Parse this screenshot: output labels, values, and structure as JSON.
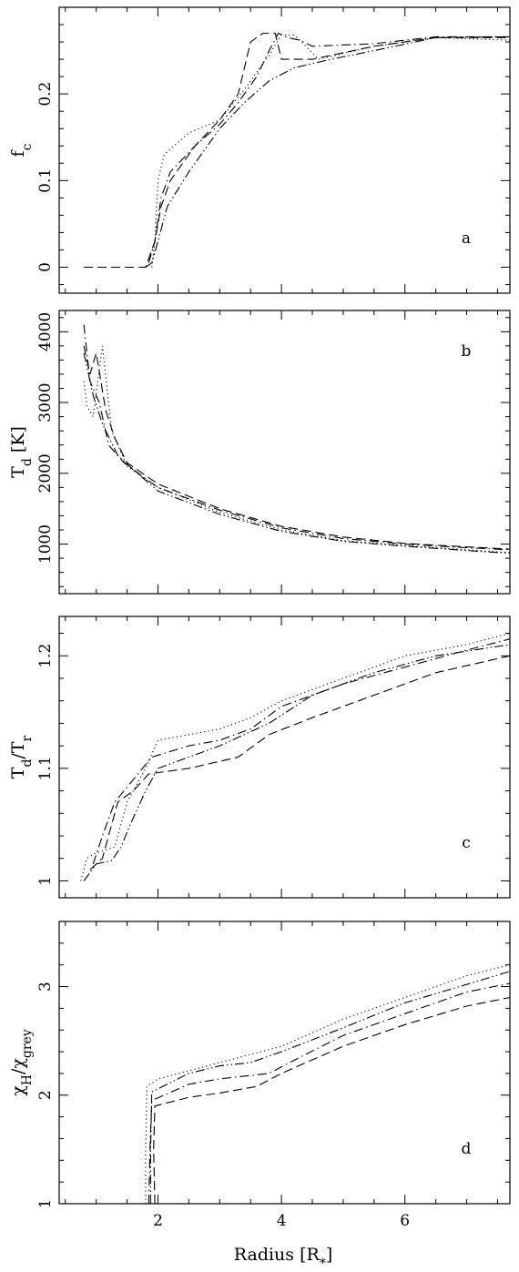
{
  "xlabel": "Radius [R",
  "xlabel_sub": "*",
  "xlabel_close": "]",
  "chart_data": [
    {
      "type": "line",
      "panel": "a",
      "ylabel_main": "f",
      "ylabel_sub": "c",
      "xlim": [
        0.4,
        7.7
      ],
      "ylim": [
        -0.03,
        0.3
      ],
      "xticks": [
        2,
        4,
        6
      ],
      "yticks": [
        0,
        0.1,
        0.2
      ],
      "ytick_labels": [
        "0",
        "0.1",
        "0.2"
      ],
      "series": [
        {
          "style": "dotted",
          "points": [
            [
              1.9,
              0
            ],
            [
              1.95,
              0.03
            ],
            [
              2.0,
              0.1
            ],
            [
              2.1,
              0.13
            ],
            [
              2.5,
              0.155
            ],
            [
              3.0,
              0.17
            ],
            [
              3.4,
              0.205
            ],
            [
              3.8,
              0.245
            ],
            [
              4.0,
              0.268
            ],
            [
              4.2,
              0.268
            ],
            [
              4.3,
              0.262
            ],
            [
              4.6,
              0.24
            ],
            [
              5.5,
              0.255
            ],
            [
              6.5,
              0.265
            ],
            [
              7.7,
              0.262
            ]
          ]
        },
        {
          "style": "dashed",
          "points": [
            [
              0.8,
              0
            ],
            [
              1.8,
              0
            ],
            [
              1.95,
              0.03
            ],
            [
              2.05,
              0.07
            ],
            [
              2.2,
              0.1
            ],
            [
              2.6,
              0.14
            ],
            [
              3.0,
              0.17
            ],
            [
              3.3,
              0.2
            ],
            [
              3.5,
              0.26
            ],
            [
              3.7,
              0.27
            ],
            [
              3.9,
              0.27
            ],
            [
              4.0,
              0.24
            ],
            [
              4.5,
              0.24
            ],
            [
              5.5,
              0.255
            ],
            [
              6.5,
              0.265
            ],
            [
              7.7,
              0.265
            ]
          ]
        },
        {
          "style": "dashdot",
          "points": [
            [
              1.85,
              0.005
            ],
            [
              1.95,
              0.03
            ],
            [
              2.05,
              0.08
            ],
            [
              2.2,
              0.11
            ],
            [
              2.6,
              0.14
            ],
            [
              3.0,
              0.165
            ],
            [
              3.3,
              0.19
            ],
            [
              3.6,
              0.22
            ],
            [
              3.8,
              0.25
            ],
            [
              3.95,
              0.27
            ],
            [
              4.1,
              0.265
            ],
            [
              4.3,
              0.262
            ],
            [
              4.5,
              0.255
            ],
            [
              5.5,
              0.258
            ],
            [
              6.5,
              0.266
            ],
            [
              7.7,
              0.266
            ]
          ]
        },
        {
          "style": "dashdotdot",
          "points": [
            [
              1.8,
              0
            ],
            [
              1.9,
              0.005
            ],
            [
              2.0,
              0.03
            ],
            [
              2.15,
              0.07
            ],
            [
              2.5,
              0.11
            ],
            [
              3.0,
              0.16
            ],
            [
              3.4,
              0.19
            ],
            [
              3.8,
              0.215
            ],
            [
              4.2,
              0.23
            ],
            [
              4.8,
              0.24
            ],
            [
              5.5,
              0.25
            ],
            [
              6.5,
              0.265
            ],
            [
              7.7,
              0.266
            ]
          ]
        }
      ]
    },
    {
      "type": "line",
      "panel": "b",
      "ylabel_main": "T",
      "ylabel_sub": "d",
      "ylabel_rest": " [K]",
      "xlim": [
        0.4,
        7.7
      ],
      "ylim": [
        300,
        4300
      ],
      "xticks": [
        2,
        4,
        6
      ],
      "yticks": [
        1000,
        2000,
        3000,
        4000
      ],
      "ytick_labels": [
        "1000",
        "2000",
        "3000",
        "4000"
      ],
      "series": [
        {
          "style": "dotted",
          "points": [
            [
              0.8,
              3300
            ],
            [
              0.85,
              2950
            ],
            [
              0.95,
              2800
            ],
            [
              1.1,
              3800
            ],
            [
              1.25,
              2600
            ],
            [
              1.5,
              2100
            ],
            [
              2.0,
              1800
            ],
            [
              3.0,
              1450
            ],
            [
              4.0,
              1200
            ],
            [
              5.0,
              1050
            ],
            [
              6.0,
              980
            ],
            [
              7.0,
              920
            ],
            [
              7.7,
              880
            ]
          ]
        },
        {
          "style": "dashed",
          "points": [
            [
              0.8,
              3800
            ],
            [
              0.9,
              3400
            ],
            [
              1.0,
              3700
            ],
            [
              1.15,
              2900
            ],
            [
              1.3,
              2500
            ],
            [
              1.5,
              2150
            ],
            [
              2.0,
              1850
            ],
            [
              3.0,
              1500
            ],
            [
              4.0,
              1250
            ],
            [
              5.0,
              1100
            ],
            [
              6.0,
              1010
            ],
            [
              7.0,
              960
            ],
            [
              7.7,
              930
            ]
          ]
        },
        {
          "style": "dashdot",
          "points": [
            [
              0.8,
              4100
            ],
            [
              0.9,
              3300
            ],
            [
              1.05,
              3000
            ],
            [
              1.2,
              2400
            ],
            [
              1.45,
              2150
            ],
            [
              2.0,
              1800
            ],
            [
              3.0,
              1480
            ],
            [
              4.0,
              1230
            ],
            [
              5.0,
              1080
            ],
            [
              6.0,
              1000
            ],
            [
              7.0,
              950
            ],
            [
              7.7,
              920
            ]
          ]
        },
        {
          "style": "dashdotdot",
          "points": [
            [
              0.8,
              3700
            ],
            [
              0.95,
              3100
            ],
            [
              1.1,
              2700
            ],
            [
              1.35,
              2250
            ],
            [
              1.6,
              2050
            ],
            [
              2.0,
              1750
            ],
            [
              3.0,
              1420
            ],
            [
              4.0,
              1180
            ],
            [
              5.0,
              1040
            ],
            [
              6.0,
              970
            ],
            [
              7.0,
              910
            ],
            [
              7.7,
              870
            ]
          ]
        }
      ]
    },
    {
      "type": "line",
      "panel": "c",
      "ylabel_main": "T",
      "ylabel_sub": "d",
      "ylabel_rest2": "/T",
      "ylabel_sub2": "r",
      "xlim": [
        0.4,
        7.7
      ],
      "ylim": [
        0.985,
        1.235
      ],
      "xticks": [
        2,
        4,
        6
      ],
      "yticks": [
        1.0,
        1.1,
        1.2
      ],
      "ytick_labels": [
        "1",
        "1.1",
        "1.2"
      ],
      "series": [
        {
          "style": "dotted",
          "points": [
            [
              0.75,
              1.0
            ],
            [
              0.85,
              1.02
            ],
            [
              1.0,
              1.025
            ],
            [
              1.3,
              1.03
            ],
            [
              1.5,
              1.07
            ],
            [
              1.8,
              1.1
            ],
            [
              2.0,
              1.125
            ],
            [
              2.5,
              1.13
            ],
            [
              3.0,
              1.135
            ],
            [
              3.5,
              1.145
            ],
            [
              4.0,
              1.16
            ],
            [
              5.0,
              1.18
            ],
            [
              6.0,
              1.2
            ],
            [
              7.0,
              1.21
            ],
            [
              7.7,
              1.22
            ]
          ]
        },
        {
          "style": "dashed",
          "points": [
            [
              0.9,
              1.01
            ],
            [
              1.1,
              1.02
            ],
            [
              1.2,
              1.04
            ],
            [
              1.35,
              1.07
            ],
            [
              1.6,
              1.08
            ],
            [
              1.85,
              1.095
            ],
            [
              2.5,
              1.1
            ],
            [
              3.3,
              1.11
            ],
            [
              3.8,
              1.13
            ],
            [
              4.5,
              1.145
            ],
            [
              5.5,
              1.165
            ],
            [
              6.5,
              1.185
            ],
            [
              7.7,
              1.2
            ]
          ]
        },
        {
          "style": "dashdot",
          "points": [
            [
              0.95,
              1.015
            ],
            [
              1.1,
              1.04
            ],
            [
              1.3,
              1.07
            ],
            [
              1.6,
              1.09
            ],
            [
              1.9,
              1.11
            ],
            [
              2.5,
              1.12
            ],
            [
              3.0,
              1.125
            ],
            [
              3.5,
              1.135
            ],
            [
              4.0,
              1.155
            ],
            [
              5.0,
              1.175
            ],
            [
              6.0,
              1.19
            ],
            [
              7.0,
              1.205
            ],
            [
              7.7,
              1.215
            ]
          ]
        },
        {
          "style": "dashdotdot",
          "points": [
            [
              0.8,
              1.0
            ],
            [
              1.0,
              1.015
            ],
            [
              1.25,
              1.018
            ],
            [
              1.4,
              1.03
            ],
            [
              1.55,
              1.05
            ],
            [
              1.8,
              1.08
            ],
            [
              2.0,
              1.1
            ],
            [
              2.5,
              1.11
            ],
            [
              3.0,
              1.12
            ],
            [
              3.8,
              1.14
            ],
            [
              4.5,
              1.165
            ],
            [
              5.5,
              1.185
            ],
            [
              6.5,
              1.2
            ],
            [
              7.7,
              1.21
            ]
          ]
        }
      ]
    },
    {
      "type": "line",
      "panel": "d",
      "ylabel_main": "χ",
      "ylabel_sub": "H",
      "ylabel_rest2": "/χ",
      "ylabel_sub2": "grey",
      "xlim": [
        0.4,
        7.7
      ],
      "ylim": [
        1.0,
        3.6
      ],
      "xticks": [
        2,
        4,
        6
      ],
      "yticks": [
        1,
        2,
        3
      ],
      "ytick_labels": [
        "1",
        "2",
        "3"
      ],
      "series": [
        {
          "style": "dotted",
          "points": [
            [
              1.8,
              1.0
            ],
            [
              1.8,
              1.5
            ],
            [
              1.82,
              2.08
            ],
            [
              2.0,
              2.15
            ],
            [
              3.0,
              2.3
            ],
            [
              4.0,
              2.45
            ],
            [
              5.0,
              2.7
            ],
            [
              6.0,
              2.9
            ],
            [
              7.0,
              3.1
            ],
            [
              7.7,
              3.2
            ]
          ]
        },
        {
          "style": "dashed",
          "points": [
            [
              1.95,
              1.0
            ],
            [
              1.93,
              1.5
            ],
            [
              1.95,
              1.9
            ],
            [
              2.5,
              1.98
            ],
            [
              3.0,
              2.02
            ],
            [
              3.6,
              2.08
            ],
            [
              4.0,
              2.2
            ],
            [
              5.0,
              2.45
            ],
            [
              6.0,
              2.65
            ],
            [
              7.0,
              2.82
            ],
            [
              7.7,
              2.9
            ]
          ]
        },
        {
          "style": "dashdot",
          "points": [
            [
              1.85,
              1.0
            ],
            [
              1.87,
              1.5
            ],
            [
              1.9,
              1.95
            ],
            [
              2.5,
              2.1
            ],
            [
              3.0,
              2.15
            ],
            [
              3.8,
              2.2
            ],
            [
              4.2,
              2.32
            ],
            [
              5.0,
              2.55
            ],
            [
              6.0,
              2.75
            ],
            [
              7.0,
              2.95
            ],
            [
              7.7,
              3.03
            ]
          ]
        },
        {
          "style": "dashdotdot",
          "points": [
            [
              1.88,
              1.0
            ],
            [
              1.88,
              1.5
            ],
            [
              1.9,
              2.03
            ],
            [
              2.5,
              2.2
            ],
            [
              3.0,
              2.27
            ],
            [
              3.5,
              2.3
            ],
            [
              4.0,
              2.4
            ],
            [
              5.0,
              2.62
            ],
            [
              6.0,
              2.85
            ],
            [
              7.0,
              3.02
            ],
            [
              7.7,
              3.14
            ]
          ]
        }
      ]
    }
  ]
}
